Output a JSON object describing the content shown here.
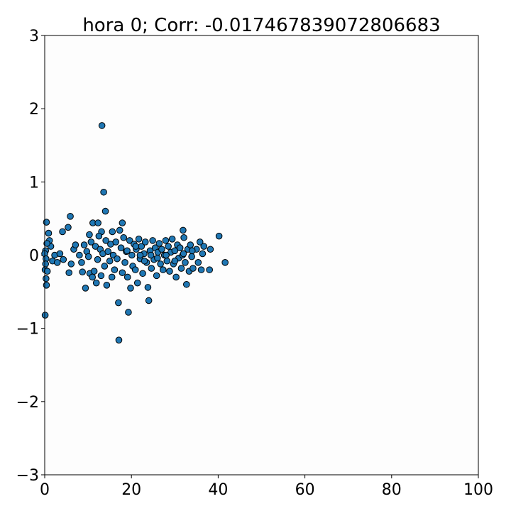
{
  "chart_data": {
    "type": "scatter",
    "title": "hora 0; Corr: -0.017467839072806683",
    "xlabel": "",
    "ylabel": "",
    "xlim": [
      0,
      100
    ],
    "ylim": [
      -3,
      3
    ],
    "xticks": [
      0,
      20,
      40,
      60,
      80,
      100
    ],
    "yticks": [
      -3,
      -2,
      -1,
      0,
      1,
      2,
      3
    ],
    "grid": false,
    "legend": "none",
    "colors": {
      "marker_fill": "#1f77b4",
      "marker_edge": "#000000",
      "axes_bg": "#fdfdfd"
    },
    "points": [
      {
        "x": 13.2,
        "y": 1.77
      },
      {
        "x": 13.6,
        "y": 0.86
      },
      {
        "x": 14.0,
        "y": 0.6
      },
      {
        "x": 5.9,
        "y": 0.53
      },
      {
        "x": 0.4,
        "y": 0.45
      },
      {
        "x": 17.9,
        "y": 0.44
      },
      {
        "x": 11.1,
        "y": 0.44
      },
      {
        "x": 12.3,
        "y": 0.44
      },
      {
        "x": 5.4,
        "y": 0.38
      },
      {
        "x": 4.1,
        "y": 0.32
      },
      {
        "x": 0.9,
        "y": 0.3
      },
      {
        "x": 10.3,
        "y": 0.28
      },
      {
        "x": 15.6,
        "y": 0.32
      },
      {
        "x": 13.1,
        "y": 0.32
      },
      {
        "x": 31.9,
        "y": 0.34
      },
      {
        "x": 40.2,
        "y": 0.26
      },
      {
        "x": 2.3,
        "y": 0.0
      },
      {
        "x": 3.5,
        "y": 0.02
      },
      {
        "x": 1.4,
        "y": 0.12
      },
      {
        "x": 1.1,
        "y": 0.2
      },
      {
        "x": 0.5,
        "y": 0.16
      },
      {
        "x": 0.2,
        "y": 0.06
      },
      {
        "x": 0.0,
        "y": 0.02
      },
      {
        "x": 0.3,
        "y": -0.05
      },
      {
        "x": 0.2,
        "y": -0.12
      },
      {
        "x": 0.1,
        "y": -0.2
      },
      {
        "x": 0.3,
        "y": -0.32
      },
      {
        "x": 0.4,
        "y": -0.41
      },
      {
        "x": 0.1,
        "y": -0.82
      },
      {
        "x": 0.6,
        "y": -0.22
      },
      {
        "x": 1.8,
        "y": -0.08
      },
      {
        "x": 2.9,
        "y": -0.1
      },
      {
        "x": 4.3,
        "y": -0.06
      },
      {
        "x": 5.6,
        "y": -0.24
      },
      {
        "x": 6.1,
        "y": -0.12
      },
      {
        "x": 6.7,
        "y": 0.08
      },
      {
        "x": 7.1,
        "y": 0.14
      },
      {
        "x": 8.0,
        "y": 0.0
      },
      {
        "x": 8.5,
        "y": -0.1
      },
      {
        "x": 8.7,
        "y": -0.23
      },
      {
        "x": 9.1,
        "y": 0.14
      },
      {
        "x": 9.4,
        "y": -0.45
      },
      {
        "x": 9.7,
        "y": 0.05
      },
      {
        "x": 10.1,
        "y": -0.02
      },
      {
        "x": 10.4,
        "y": -0.25
      },
      {
        "x": 10.7,
        "y": 0.18
      },
      {
        "x": 11.0,
        "y": -0.3
      },
      {
        "x": 11.4,
        "y": -0.22
      },
      {
        "x": 11.7,
        "y": 0.12
      },
      {
        "x": 11.9,
        "y": -0.38
      },
      {
        "x": 12.2,
        "y": -0.06
      },
      {
        "x": 12.5,
        "y": 0.26
      },
      {
        "x": 12.8,
        "y": 0.08
      },
      {
        "x": 13.0,
        "y": -0.28
      },
      {
        "x": 13.4,
        "y": 0.02
      },
      {
        "x": 13.8,
        "y": -0.15
      },
      {
        "x": 14.1,
        "y": 0.2
      },
      {
        "x": 14.3,
        "y": -0.41
      },
      {
        "x": 14.6,
        "y": 0.05
      },
      {
        "x": 15.0,
        "y": -0.08
      },
      {
        "x": 15.2,
        "y": 0.15
      },
      {
        "x": 15.5,
        "y": -0.3
      },
      {
        "x": 15.8,
        "y": 0.0
      },
      {
        "x": 16.1,
        "y": -0.2
      },
      {
        "x": 16.4,
        "y": 0.18
      },
      {
        "x": 16.7,
        "y": -0.05
      },
      {
        "x": 17.0,
        "y": -0.65
      },
      {
        "x": 17.1,
        "y": -1.16
      },
      {
        "x": 17.3,
        "y": 0.34
      },
      {
        "x": 17.6,
        "y": 0.1
      },
      {
        "x": 17.9,
        "y": -0.24
      },
      {
        "x": 18.2,
        "y": 0.24
      },
      {
        "x": 18.5,
        "y": -0.1
      },
      {
        "x": 18.8,
        "y": 0.05
      },
      {
        "x": 19.1,
        "y": -0.3
      },
      {
        "x": 19.3,
        "y": -0.78
      },
      {
        "x": 19.6,
        "y": 0.2
      },
      {
        "x": 19.8,
        "y": -0.45
      },
      {
        "x": 20.1,
        "y": 0.0
      },
      {
        "x": 20.3,
        "y": -0.15
      },
      {
        "x": 20.6,
        "y": 0.15
      },
      {
        "x": 20.9,
        "y": -0.2
      },
      {
        "x": 21.1,
        "y": 0.08
      },
      {
        "x": 21.4,
        "y": -0.38
      },
      {
        "x": 21.7,
        "y": 0.22
      },
      {
        "x": 22.0,
        "y": -0.05
      },
      {
        "x": 22.3,
        "y": 0.12
      },
      {
        "x": 22.6,
        "y": -0.25
      },
      {
        "x": 22.9,
        "y": 0.02
      },
      {
        "x": 23.2,
        "y": 0.18
      },
      {
        "x": 23.5,
        "y": -0.1
      },
      {
        "x": 23.8,
        "y": -0.44
      },
      {
        "x": 24.0,
        "y": -0.62
      },
      {
        "x": 24.3,
        "y": 0.06
      },
      {
        "x": 24.6,
        "y": -0.18
      },
      {
        "x": 24.9,
        "y": 0.2
      },
      {
        "x": 25.2,
        "y": -0.06
      },
      {
        "x": 25.5,
        "y": 0.1
      },
      {
        "x": 25.8,
        "y": -0.28
      },
      {
        "x": 26.1,
        "y": 0.04
      },
      {
        "x": 26.4,
        "y": 0.16
      },
      {
        "x": 26.7,
        "y": -0.12
      },
      {
        "x": 27.0,
        "y": 0.08
      },
      {
        "x": 27.3,
        "y": -0.2
      },
      {
        "x": 27.6,
        "y": 0.0
      },
      {
        "x": 27.9,
        "y": 0.2
      },
      {
        "x": 28.2,
        "y": -0.08
      },
      {
        "x": 28.5,
        "y": 0.12
      },
      {
        "x": 28.8,
        "y": -0.22
      },
      {
        "x": 29.1,
        "y": 0.04
      },
      {
        "x": 29.4,
        "y": 0.22
      },
      {
        "x": 29.7,
        "y": -0.12
      },
      {
        "x": 30.0,
        "y": 0.06
      },
      {
        "x": 30.3,
        "y": -0.3
      },
      {
        "x": 30.6,
        "y": 0.14
      },
      {
        "x": 30.9,
        "y": -0.04
      },
      {
        "x": 31.2,
        "y": 0.1
      },
      {
        "x": 31.5,
        "y": -0.18
      },
      {
        "x": 31.8,
        "y": 0.0
      },
      {
        "x": 32.1,
        "y": 0.24
      },
      {
        "x": 32.4,
        "y": -0.1
      },
      {
        "x": 32.7,
        "y": -0.4
      },
      {
        "x": 33.0,
        "y": 0.08
      },
      {
        "x": 33.3,
        "y": -0.22
      },
      {
        "x": 33.6,
        "y": 0.14
      },
      {
        "x": 33.9,
        "y": -0.02
      },
      {
        "x": 34.2,
        "y": -0.18
      },
      {
        "x": 35.0,
        "y": 0.08
      },
      {
        "x": 35.4,
        "y": -0.1
      },
      {
        "x": 35.8,
        "y": 0.18
      },
      {
        "x": 36.1,
        "y": -0.2
      },
      {
        "x": 36.4,
        "y": 0.02
      },
      {
        "x": 36.7,
        "y": 0.12
      },
      {
        "x": 38.2,
        "y": 0.08
      },
      {
        "x": 38.0,
        "y": -0.2
      },
      {
        "x": 41.6,
        "y": -0.1
      },
      {
        "x": 19.0,
        "y": 0.06
      },
      {
        "x": 21.0,
        "y": 0.12
      },
      {
        "x": 22.0,
        "y": 0.0
      },
      {
        "x": 23.0,
        "y": -0.08
      },
      {
        "x": 24.5,
        "y": 0.0
      },
      {
        "x": 26.0,
        "y": -0.04
      },
      {
        "x": 28.0,
        "y": 0.0
      },
      {
        "x": 30.0,
        "y": -0.08
      },
      {
        "x": 32.0,
        "y": 0.02
      },
      {
        "x": 34.0,
        "y": 0.06
      }
    ]
  }
}
